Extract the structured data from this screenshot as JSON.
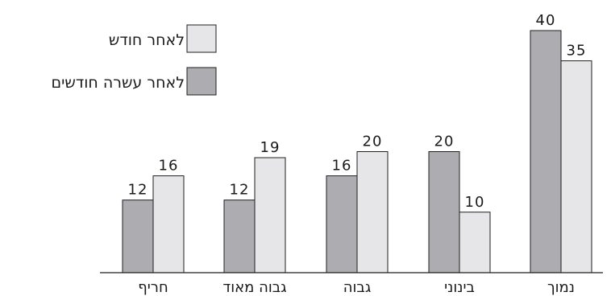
{
  "chart_data": {
    "type": "bar",
    "categories": [
      "נמוך",
      "בינוני",
      "גבוה",
      "גבוה מאוד",
      "חריף"
    ],
    "series": [
      {
        "name": "לאחר עשרה חודשים",
        "color": "#adadb1",
        "values": [
          40,
          20,
          16,
          12,
          12
        ]
      },
      {
        "name": "לאחר חודש",
        "color": "#e6e6e8",
        "values": [
          35,
          10,
          20,
          19,
          16
        ]
      }
    ],
    "ylim": [
      0,
      40
    ],
    "grid": false,
    "legend": "top-left",
    "category_order": "right-to-left",
    "data_labels": true
  }
}
